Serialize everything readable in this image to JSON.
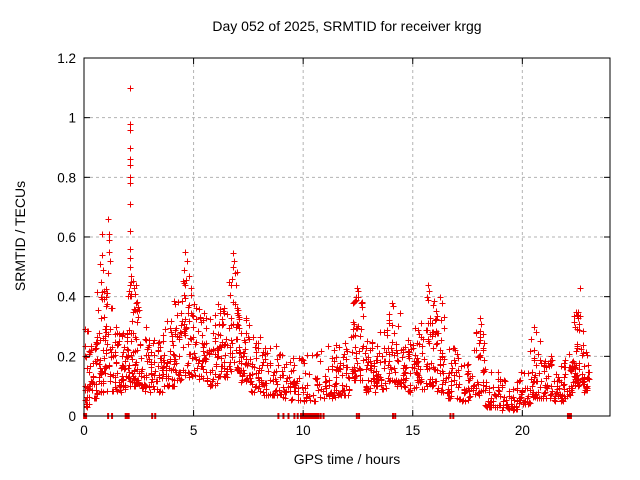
{
  "chart_data": {
    "type": "scatter",
    "title": "Day 052 of 2025, SRMTID for receiver krgg",
    "xlabel": "GPS time / hours",
    "ylabel": "SRMTID / TECUs",
    "series_name": "SRMTID",
    "xlim": [
      0,
      24
    ],
    "ylim": [
      0,
      1.2
    ],
    "xticks": {
      "values": [
        0,
        5,
        10,
        15,
        20
      ],
      "labels": [
        "0",
        "5",
        "10",
        "15",
        "20"
      ]
    },
    "yticks": {
      "values": [
        0,
        0.2,
        0.4,
        0.6,
        0.8,
        1.0,
        1.2
      ],
      "labels": [
        "0",
        "0.2",
        "0.4",
        "0.6",
        "0.8",
        "1",
        "1.2"
      ]
    },
    "grid": {
      "show": true,
      "color": "#b3b3b3",
      "dash": "3,3"
    },
    "border_color": "#000000",
    "marker": {
      "shape": "plus",
      "size": 7,
      "color": "#ee0000"
    },
    "seed": 20250221,
    "peak_points": [
      [
        2.1,
        1.1
      ],
      [
        2.11,
        0.98
      ],
      [
        2.1,
        0.96
      ],
      [
        2.12,
        0.9
      ],
      [
        2.09,
        0.86
      ],
      [
        2.11,
        0.84
      ],
      [
        2.1,
        0.8
      ],
      [
        2.12,
        0.78
      ],
      [
        2.1,
        0.71
      ],
      [
        2.11,
        0.62
      ],
      [
        2.09,
        0.56
      ],
      [
        2.12,
        0.53
      ],
      [
        2.1,
        0.5
      ],
      [
        2.13,
        0.47
      ],
      [
        2.08,
        0.44
      ],
      [
        2.15,
        0.41
      ],
      [
        0.73,
        0.51
      ],
      [
        0.8,
        0.54
      ],
      [
        0.82,
        0.61
      ],
      [
        0.85,
        0.49
      ],
      [
        0.78,
        0.45
      ],
      [
        1.1,
        0.66
      ],
      [
        1.14,
        0.61
      ],
      [
        1.12,
        0.59
      ],
      [
        1.16,
        0.55
      ],
      [
        1.18,
        0.52
      ],
      [
        1.08,
        0.48
      ],
      [
        2.35,
        0.44
      ],
      [
        2.33,
        0.41
      ],
      [
        2.38,
        0.38
      ],
      [
        4.62,
        0.55
      ],
      [
        4.7,
        0.52
      ],
      [
        4.56,
        0.49
      ],
      [
        4.78,
        0.47
      ],
      [
        6.8,
        0.545
      ],
      [
        6.84,
        0.52
      ],
      [
        6.78,
        0.5
      ],
      [
        6.88,
        0.48
      ],
      [
        6.75,
        0.46
      ],
      [
        6.92,
        0.44
      ],
      [
        12.45,
        0.43
      ],
      [
        12.52,
        0.42
      ],
      [
        12.48,
        0.4
      ],
      [
        12.42,
        0.39
      ],
      [
        14.05,
        0.38
      ],
      [
        14.12,
        0.37
      ],
      [
        15.68,
        0.44
      ],
      [
        15.72,
        0.42
      ],
      [
        15.65,
        0.4
      ],
      [
        16.25,
        0.4
      ],
      [
        16.32,
        0.38
      ],
      [
        18.05,
        0.33
      ],
      [
        18.12,
        0.31
      ],
      [
        20.55,
        0.3
      ],
      [
        20.62,
        0.28
      ],
      [
        22.63,
        0.43
      ],
      [
        22.45,
        0.35
      ],
      [
        22.5,
        0.34
      ],
      [
        22.55,
        0.33
      ],
      [
        22.6,
        0.31
      ],
      [
        22.4,
        0.3
      ]
    ],
    "band_segments": [
      [
        0.02,
        0.3,
        28,
        0.03,
        0.3
      ],
      [
        0.3,
        0.6,
        26,
        0.06,
        0.26
      ],
      [
        0.6,
        0.9,
        30,
        0.08,
        0.42
      ],
      [
        0.9,
        1.3,
        36,
        0.08,
        0.44
      ],
      [
        1.3,
        1.7,
        30,
        0.08,
        0.3
      ],
      [
        1.7,
        2.0,
        30,
        0.09,
        0.34
      ],
      [
        2.0,
        2.3,
        36,
        0.1,
        0.46
      ],
      [
        2.3,
        2.6,
        30,
        0.1,
        0.4
      ],
      [
        2.6,
        3.1,
        36,
        0.08,
        0.3
      ],
      [
        3.1,
        3.6,
        34,
        0.08,
        0.27
      ],
      [
        3.6,
        4.1,
        36,
        0.1,
        0.33
      ],
      [
        4.1,
        4.5,
        34,
        0.12,
        0.42
      ],
      [
        4.5,
        5.0,
        42,
        0.13,
        0.5
      ],
      [
        5.0,
        5.5,
        36,
        0.12,
        0.38
      ],
      [
        5.5,
        6.1,
        40,
        0.1,
        0.34
      ],
      [
        6.1,
        6.6,
        42,
        0.13,
        0.38
      ],
      [
        6.6,
        7.1,
        46,
        0.15,
        0.52
      ],
      [
        7.1,
        7.6,
        40,
        0.11,
        0.33
      ],
      [
        7.6,
        8.2,
        40,
        0.08,
        0.27
      ],
      [
        8.2,
        8.8,
        36,
        0.07,
        0.24
      ],
      [
        8.8,
        9.4,
        30,
        0.06,
        0.21
      ],
      [
        9.4,
        10.0,
        28,
        0.05,
        0.2
      ],
      [
        10.0,
        10.8,
        30,
        0.05,
        0.22
      ],
      [
        10.8,
        11.5,
        36,
        0.06,
        0.24
      ],
      [
        11.5,
        12.2,
        40,
        0.07,
        0.27
      ],
      [
        12.2,
        12.75,
        46,
        0.12,
        0.4
      ],
      [
        12.75,
        13.3,
        36,
        0.08,
        0.26
      ],
      [
        13.3,
        13.85,
        36,
        0.09,
        0.3
      ],
      [
        13.85,
        14.45,
        40,
        0.1,
        0.36
      ],
      [
        14.45,
        15.0,
        36,
        0.08,
        0.26
      ],
      [
        15.0,
        15.6,
        40,
        0.09,
        0.33
      ],
      [
        15.6,
        16.05,
        36,
        0.1,
        0.4
      ],
      [
        16.05,
        16.5,
        36,
        0.08,
        0.36
      ],
      [
        16.5,
        17.1,
        36,
        0.06,
        0.23
      ],
      [
        17.1,
        17.7,
        30,
        0.05,
        0.19
      ],
      [
        17.7,
        18.3,
        36,
        0.07,
        0.3
      ],
      [
        18.3,
        19.0,
        36,
        0.03,
        0.15
      ],
      [
        19.0,
        19.8,
        36,
        0.02,
        0.12
      ],
      [
        19.8,
        20.35,
        30,
        0.04,
        0.16
      ],
      [
        20.35,
        20.9,
        36,
        0.06,
        0.26
      ],
      [
        20.9,
        21.4,
        30,
        0.06,
        0.21
      ],
      [
        21.4,
        21.9,
        30,
        0.05,
        0.18
      ],
      [
        21.9,
        22.35,
        30,
        0.06,
        0.22
      ],
      [
        22.35,
        22.8,
        42,
        0.1,
        0.35
      ],
      [
        22.8,
        23.05,
        20,
        0.08,
        0.26
      ]
    ],
    "gap_markers": {
      "color": "#ee0000",
      "items": [
        [
          0.05,
          4
        ],
        [
          1.1,
          2
        ],
        [
          1.28,
          2
        ],
        [
          1.97,
          5
        ],
        [
          3.11,
          2
        ],
        [
          3.25,
          2
        ],
        [
          8.87,
          2
        ],
        [
          9.1,
          2
        ],
        [
          9.33,
          2
        ],
        [
          9.6,
          2
        ],
        [
          9.75,
          2
        ],
        [
          9.9,
          2
        ],
        [
          10.05,
          5
        ],
        [
          10.2,
          5
        ],
        [
          10.35,
          5
        ],
        [
          10.5,
          5
        ],
        [
          10.65,
          4
        ],
        [
          10.8,
          2
        ],
        [
          10.93,
          2
        ],
        [
          12.45,
          2
        ],
        [
          12.55,
          2
        ],
        [
          14.1,
          2
        ],
        [
          14.2,
          2
        ],
        [
          16.72,
          2
        ],
        [
          16.85,
          2
        ],
        [
          22.15,
          5
        ]
      ]
    }
  }
}
